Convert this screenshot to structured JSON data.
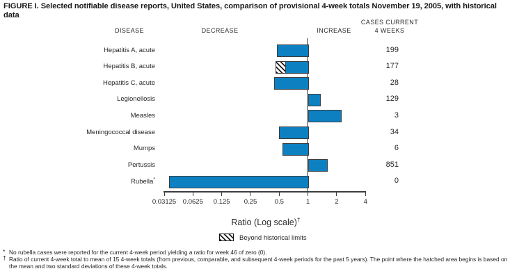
{
  "title": "FIGURE I. Selected notifiable disease reports, United States, comparison of provisional 4-week totals November 19, 2005, with historical data",
  "headers": {
    "disease": "DISEASE",
    "decrease": "DECREASE",
    "increase": "INCREASE",
    "cases_line1": "CASES CURRENT",
    "cases_line2": "4 WEEKS"
  },
  "chart_data": {
    "type": "bar",
    "orientation": "horizontal",
    "scale": "log2",
    "baseline": 1,
    "xlim": [
      0.03125,
      4
    ],
    "axis_ticks": [
      0.03125,
      0.0625,
      0.125,
      0.25,
      0.5,
      1,
      2,
      4
    ],
    "tick_labels": [
      "0.03125",
      "0.0625",
      "0.125",
      "0.25",
      "0.5",
      "1",
      "2",
      "4"
    ],
    "xlabel": "Ratio (Log scale)",
    "xlabel_superscript": "†",
    "rows": [
      {
        "disease": "Hepatitis A, acute",
        "ratio": 0.47,
        "cases": "199"
      },
      {
        "disease": "Hepatitis B, acute",
        "ratio": 0.46,
        "beyond_limit_to": 0.59,
        "cases": "177"
      },
      {
        "disease": "Hepatitis C, acute",
        "ratio": 0.44,
        "cases": "28"
      },
      {
        "disease": "Legionellosis",
        "ratio": 1.34,
        "cases": "129"
      },
      {
        "disease": "Measles",
        "ratio": 2.2,
        "cases": "3"
      },
      {
        "disease": "Meningococcal disease",
        "ratio": 0.5,
        "cases": "34"
      },
      {
        "disease": "Mumps",
        "ratio": 0.54,
        "cases": "6"
      },
      {
        "disease": "Pertussis",
        "ratio": 1.59,
        "cases": "851"
      },
      {
        "disease": "Rubella",
        "superscript": "*",
        "ratio": 0.035,
        "cases": "0"
      }
    ],
    "legend": {
      "label": "Beyond historical limits",
      "swatch": "diagonal-hatch"
    },
    "bar_color": "#0d80c2",
    "bar_border_color": "#3d3d3d"
  },
  "footnotes": [
    {
      "marker": "*",
      "text": "No rubella cases were reported for the current 4-week period yielding a ratio for week 46 of zero (0)."
    },
    {
      "marker": "†",
      "text": "Ratio of current 4-week total to mean of 15 4-week totals (from previous, comparable, and subsequent 4-week periods for the past 5 years). The point where the hatched area begins is based on the mean and two standard deviations of these 4-week totals."
    }
  ]
}
